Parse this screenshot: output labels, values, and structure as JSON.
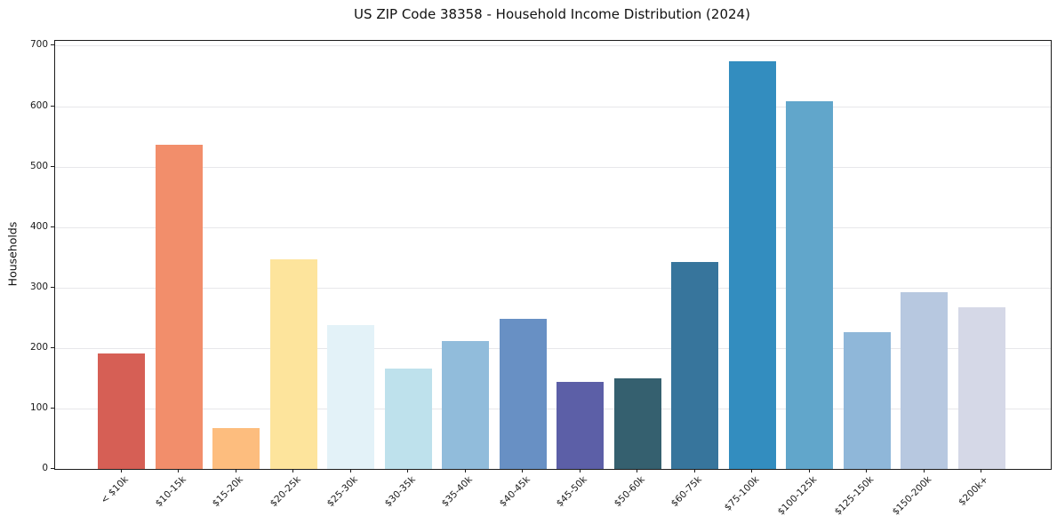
{
  "figure": {
    "title": "US ZIP Code 38358 - Household Income Distribution (2024)"
  },
  "chart_data": {
    "type": "bar",
    "title": "US ZIP Code 38358 - Household Income Distribution (2024)",
    "xlabel": "",
    "ylabel": "Households",
    "categories": [
      "< $10k",
      "$10-15k",
      "$15-20k",
      "$20-25k",
      "$25-30k",
      "$30-35k",
      "$35-40k",
      "$40-45k",
      "$45-50k",
      "$50-60k",
      "$60-75k",
      "$75-100k",
      "$100-125k",
      "$125-150k",
      "$150-200k",
      "$200k+"
    ],
    "values": [
      191,
      536,
      68,
      347,
      238,
      166,
      211,
      248,
      144,
      150,
      343,
      674,
      608,
      227,
      293,
      268
    ],
    "bar_colors": [
      "#d65f55",
      "#f28e6b",
      "#fdbd7e",
      "#fde49c",
      "#e3f2f8",
      "#bee1ec",
      "#91bcdb",
      "#6890c4",
      "#5c5fa7",
      "#35606f",
      "#37759c",
      "#338dbf",
      "#61a6cb",
      "#8fb7d9",
      "#b7c8e0",
      "#d5d8e7"
    ],
    "ylim": [
      0,
      708
    ],
    "yticks": [
      0,
      100,
      200,
      300,
      400,
      500,
      600,
      700
    ],
    "grid": "horizontal-major-only",
    "grid_color": "#e7e7ea",
    "axes_background": "#ffffff",
    "legend": null
  }
}
